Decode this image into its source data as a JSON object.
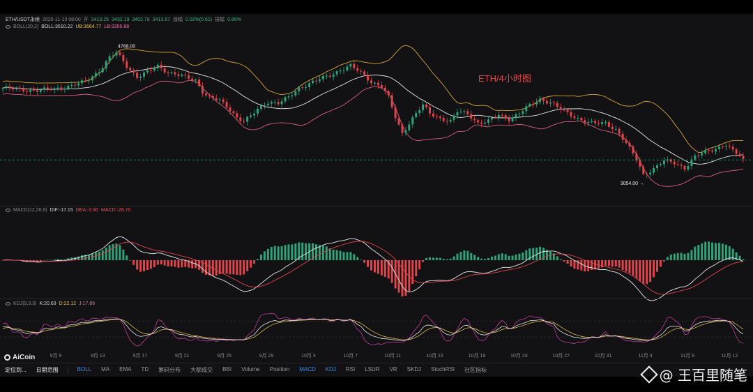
{
  "legend": {
    "symbol": "ETH/USDT永续",
    "datetime": "2025-11-13 08:00",
    "open_label": "开",
    "open": "3413.25",
    "high": "3432.19",
    "low": "3402.78",
    "close": "3413.87",
    "change_label": "涨幅",
    "change": "0.02%(0.61)",
    "amp_label": "振幅",
    "amplitude": "0.86%"
  },
  "boll_legend": {
    "name": "BOLL(20,2)",
    "boll": "BOLL:3510.22",
    "ub": "UB:3664.77",
    "lb": "LB:3355.68"
  },
  "macd_legend": {
    "name": "MACD(12,26,9)",
    "dif": "DIF:-17.15",
    "dea": "DEA:-2.80",
    "macd": "MACD:-28.70"
  },
  "kdj_legend": {
    "name": "KDJ(9,3,3)",
    "k": "K:20.63",
    "d": "D:22.12",
    "j": "J:17.66"
  },
  "watermark_title": "ETH/4小时图",
  "annotations": {
    "high_label": "4768.00",
    "low_label": "3054.00 →"
  },
  "logo": "AiCoin",
  "toolbar": {
    "locate": "定位到...",
    "range": "日期范围",
    "indicators": [
      "BOLL",
      "MA",
      "EMA",
      "TD",
      "筹码分布",
      "大额成交",
      "BBI",
      "Volume",
      "Position",
      "MACD",
      "KDJ",
      "RSI",
      "LSUR",
      "VR",
      "SKDJ",
      "StochRSI"
    ],
    "active": [
      "BOLL",
      "MACD",
      "KDJ"
    ],
    "community": "社区指标"
  },
  "brand": "@ 王百里随笔",
  "colors": {
    "up": "#2fa37a",
    "down": "#e0454c",
    "boll_mid": "#e8e8e8",
    "boll_upper": "#d9a43a",
    "boll_lower": "#d9607a",
    "dif": "#e8e8e8",
    "dea": "#e0454c",
    "k": "#e8e8e8",
    "d": "#d9b44a",
    "j": "#c23c9a"
  },
  "chart_data": {
    "type": "candlestick",
    "symbol": "ETH/USDT",
    "x_ticks": [
      "9月 9",
      "9月 13",
      "9月 17",
      "9月 21",
      "9月 25",
      "9月 29",
      "10月 3",
      "10月 7",
      "10月 11",
      "10月 15",
      "10月 19",
      "10月 23",
      "10月 27",
      "10月 31",
      "11月 4",
      "11月 8",
      "11月 12"
    ],
    "ylim": [
      2950,
      4850
    ],
    "price_path": [
      [
        0,
        4320
      ],
      [
        5,
        4300
      ],
      [
        10,
        4290
      ],
      [
        15,
        4310
      ],
      [
        20,
        4350
      ],
      [
        24,
        4400
      ],
      [
        28,
        4540
      ],
      [
        31,
        4700
      ],
      [
        33,
        4768
      ],
      [
        36,
        4600
      ],
      [
        39,
        4460
      ],
      [
        42,
        4520
      ],
      [
        45,
        4600
      ],
      [
        48,
        4520
      ],
      [
        52,
        4470
      ],
      [
        56,
        4420
      ],
      [
        58,
        4280
      ],
      [
        60,
        4200
      ],
      [
        63,
        4160
      ],
      [
        66,
        4050
      ],
      [
        68,
        3950
      ],
      [
        70,
        3900
      ],
      [
        72,
        3960
      ],
      [
        74,
        4050
      ],
      [
        77,
        4150
      ],
      [
        80,
        4130
      ],
      [
        83,
        4200
      ],
      [
        86,
        4320
      ],
      [
        89,
        4380
      ],
      [
        92,
        4430
      ],
      [
        95,
        4480
      ],
      [
        98,
        4550
      ],
      [
        101,
        4600
      ],
      [
        103,
        4540
      ],
      [
        105,
        4480
      ],
      [
        107,
        4400
      ],
      [
        110,
        4340
      ],
      [
        112,
        4200
      ],
      [
        114,
        3950
      ],
      [
        116,
        3750
      ],
      [
        118,
        3880
      ],
      [
        120,
        4000
      ],
      [
        122,
        4100
      ],
      [
        124,
        4000
      ],
      [
        127,
        3940
      ],
      [
        130,
        3900
      ],
      [
        132,
        4020
      ],
      [
        135,
        4000
      ],
      [
        138,
        3880
      ],
      [
        141,
        3900
      ],
      [
        144,
        3980
      ],
      [
        147,
        3930
      ],
      [
        150,
        4000
      ],
      [
        153,
        4100
      ],
      [
        156,
        4180
      ],
      [
        159,
        4140
      ],
      [
        162,
        4050
      ],
      [
        164,
        4000
      ],
      [
        166,
        3960
      ],
      [
        169,
        3900
      ],
      [
        172,
        3870
      ],
      [
        175,
        3880
      ],
      [
        178,
        3800
      ],
      [
        181,
        3620
      ],
      [
        184,
        3420
      ],
      [
        186,
        3230
      ],
      [
        189,
        3300
      ],
      [
        192,
        3400
      ],
      [
        195,
        3380
      ],
      [
        198,
        3310
      ],
      [
        201,
        3450
      ],
      [
        204,
        3520
      ],
      [
        207,
        3560
      ],
      [
        210,
        3600
      ],
      [
        212,
        3520
      ],
      [
        214,
        3470
      ],
      [
        215,
        3413.87
      ]
    ]
  }
}
